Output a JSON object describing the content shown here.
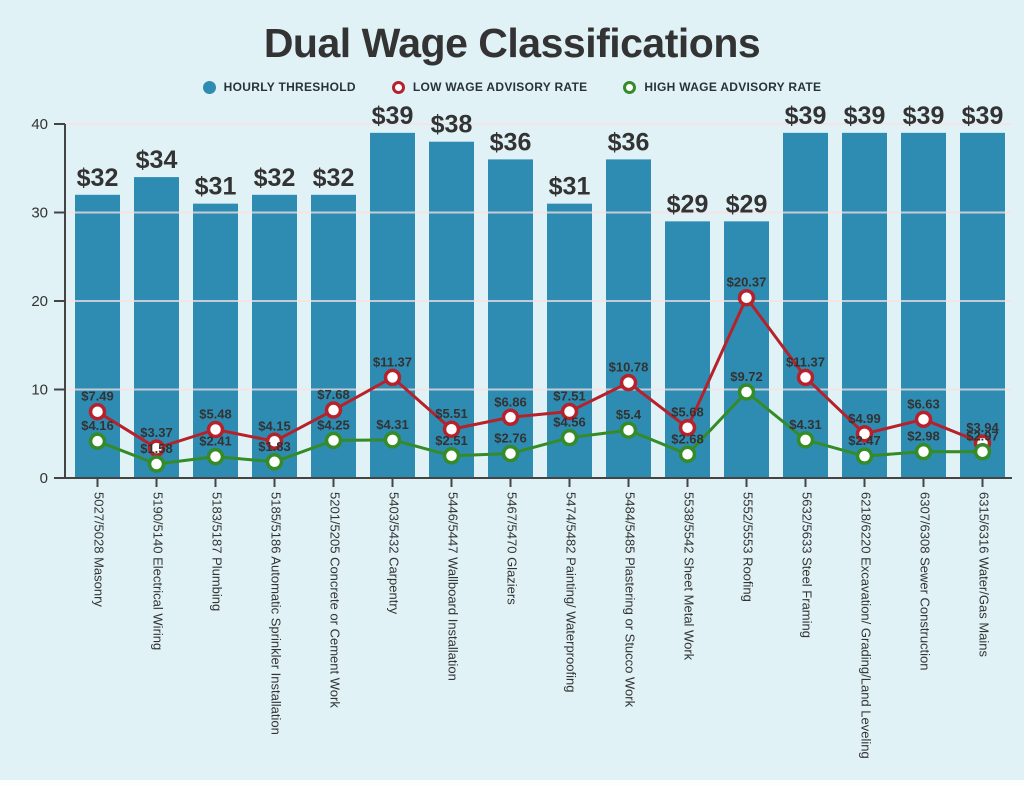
{
  "title": "Dual Wage Classifications",
  "legend": {
    "items": [
      {
        "label": "HOURLY THRESHOLD",
        "swatch": "filled-circle",
        "color": "#2e8cb2"
      },
      {
        "label": "LOW WAGE ADVISORY RATE",
        "swatch": "ring-circle",
        "color": "#b6222c"
      },
      {
        "label": "HIGH WAGE ADVISORY RATE",
        "swatch": "ring-circle",
        "color": "#348b27"
      }
    ]
  },
  "colors": {
    "background": "#e0f2f6",
    "bar": "#2e8cb2",
    "low_wage": "#b6222c",
    "high_wage": "#348b27",
    "label_text": "#333333",
    "axis": "#444444",
    "gridline": "#f8e0e2",
    "marker_fill": "#ffffff"
  },
  "chart_data": {
    "type": "bar",
    "combo": "bar+line",
    "title": "Dual Wage Classifications",
    "xlabel": "",
    "ylabel": "",
    "ylim": [
      0,
      40
    ],
    "yticks": [
      0,
      10,
      20,
      30,
      40
    ],
    "grid": true,
    "legend_position": "top",
    "categories": [
      "5027/5028 Masonry",
      "5190/5140 Electrical Wiring",
      "5183/5187 Plumbing",
      "5185/5186 Automatic Sprinkler Installation",
      "5201/5205 Concrete or Cement Work",
      "5403/5432 Carpentry",
      "5446/5447 Wallboard Installation",
      "5467/5470 Glaziers",
      "5474/5482 Painting/ Waterproofing",
      "5484/5485 Plastering or Stucco Work",
      "5538/5542 Sheet Metal Work",
      "5552/5553 Roofing",
      "5632/5633 Steel Framing",
      "6218/6220 Excavation/ Grading/Land Leveling",
      "6307/6308 Sewer Construction",
      "6315/6316 Water/Gas Mains"
    ],
    "series": [
      {
        "name": "Hourly Threshold",
        "type": "bar",
        "color": "#2e8cb2",
        "values": [
          32,
          34,
          31,
          32,
          32,
          39,
          38,
          36,
          31,
          36,
          29,
          29,
          39,
          39,
          39,
          39
        ],
        "data_labels": [
          "$32",
          "$34",
          "$31",
          "$32",
          "$32",
          "$39",
          "$38",
          "$36",
          "$31",
          "$36",
          "$29",
          "$29",
          "$39",
          "$39",
          "$39",
          "$39"
        ]
      },
      {
        "name": "Low Wage Advisory Rate",
        "type": "line",
        "color": "#b6222c",
        "values": [
          7.49,
          3.37,
          5.48,
          4.15,
          7.68,
          11.37,
          5.51,
          6.86,
          7.51,
          10.78,
          5.68,
          20.37,
          11.37,
          4.99,
          6.63,
          3.94
        ],
        "data_labels": [
          "$7.49",
          "$3.37",
          "$5.48",
          "$4.15",
          "$7.68",
          "$11.37",
          "$5.51",
          "$6.86",
          "$7.51",
          "$10.78",
          "$5.68",
          "$20.37",
          "$11.37",
          "$4.99",
          "$6.63",
          "$3.94"
        ]
      },
      {
        "name": "High Wage Advisory Rate",
        "type": "line",
        "color": "#348b27",
        "values": [
          4.16,
          1.58,
          2.41,
          1.83,
          4.25,
          4.31,
          2.51,
          2.76,
          4.56,
          5.4,
          2.68,
          9.72,
          4.31,
          2.47,
          2.98,
          2.97
        ],
        "data_labels": [
          "$4.16",
          "$1.58",
          "$2.41",
          "$1.83",
          "$4.25",
          "$4.31",
          "$2.51",
          "$2.76",
          "$4.56",
          "$5.4",
          "$2.68",
          "$9.72",
          "$4.31",
          "$2.47",
          "$2.98",
          "$2.97"
        ]
      }
    ]
  }
}
